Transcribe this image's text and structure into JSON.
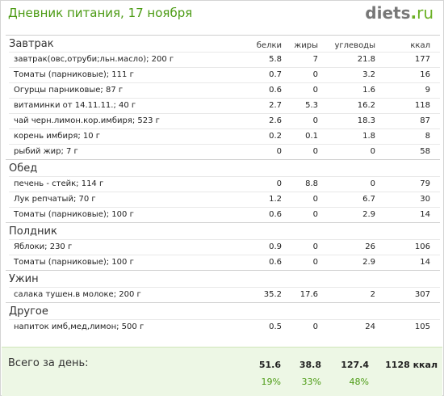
{
  "header": {
    "title": "Дневник питания, 17 ноября",
    "logo_main": "diets",
    "logo_dot": ".",
    "logo_tld": "ru"
  },
  "columns": [
    "белки",
    "жиры",
    "углеводы",
    "ккал"
  ],
  "meals": [
    {
      "title": "Завтрак",
      "items": [
        {
          "name": "завтрак(овс,отруби;льн.масло); 200 г",
          "p": "5.8",
          "f": "7",
          "c": "21.8",
          "k": "177"
        },
        {
          "name": "Томаты (парниковые); 111 г",
          "p": "0.7",
          "f": "0",
          "c": "3.2",
          "k": "16"
        },
        {
          "name": "Огурцы парниковые; 87 г",
          "p": "0.6",
          "f": "0",
          "c": "1.6",
          "k": "9"
        },
        {
          "name": "витаминки от 14.11.11.; 40 г",
          "p": "2.7",
          "f": "5.3",
          "c": "16.2",
          "k": "118"
        },
        {
          "name": "чай черн.лимон.кор.имбиря; 523 г",
          "p": "2.6",
          "f": "0",
          "c": "18.3",
          "k": "87"
        },
        {
          "name": "корень имбиря; 10 г",
          "p": "0.2",
          "f": "0.1",
          "c": "1.8",
          "k": "8"
        },
        {
          "name": "рыбий жир; 7 г",
          "p": "0",
          "f": "0",
          "c": "0",
          "k": "58"
        }
      ]
    },
    {
      "title": "Обед",
      "items": [
        {
          "name": "печень - стейк; 114 г",
          "p": "0",
          "f": "8.8",
          "c": "0",
          "k": "79"
        },
        {
          "name": "Лук репчатый; 70 г",
          "p": "1.2",
          "f": "0",
          "c": "6.7",
          "k": "30"
        },
        {
          "name": "Томаты (парниковые); 100 г",
          "p": "0.6",
          "f": "0",
          "c": "2.9",
          "k": "14"
        }
      ]
    },
    {
      "title": "Полдник",
      "items": [
        {
          "name": "Яблоки; 230 г",
          "p": "0.9",
          "f": "0",
          "c": "26",
          "k": "106"
        },
        {
          "name": "Томаты (парниковые); 100 г",
          "p": "0.6",
          "f": "0",
          "c": "2.9",
          "k": "14"
        }
      ]
    },
    {
      "title": "Ужин",
      "items": [
        {
          "name": "салака тушен.в молоке; 200 г",
          "p": "35.2",
          "f": "17.6",
          "c": "2",
          "k": "307"
        }
      ]
    },
    {
      "title": "Другое",
      "items": [
        {
          "name": "напиток имб,мед,лимон; 500 г",
          "p": "0.5",
          "f": "0",
          "c": "24",
          "k": "105"
        }
      ]
    }
  ],
  "totals": {
    "label": "Всего за день:",
    "p": "51.6",
    "f": "38.8",
    "c": "127.4",
    "k": "1128 ккал",
    "p_pct": "19%",
    "f_pct": "33%",
    "c_pct": "48%"
  }
}
